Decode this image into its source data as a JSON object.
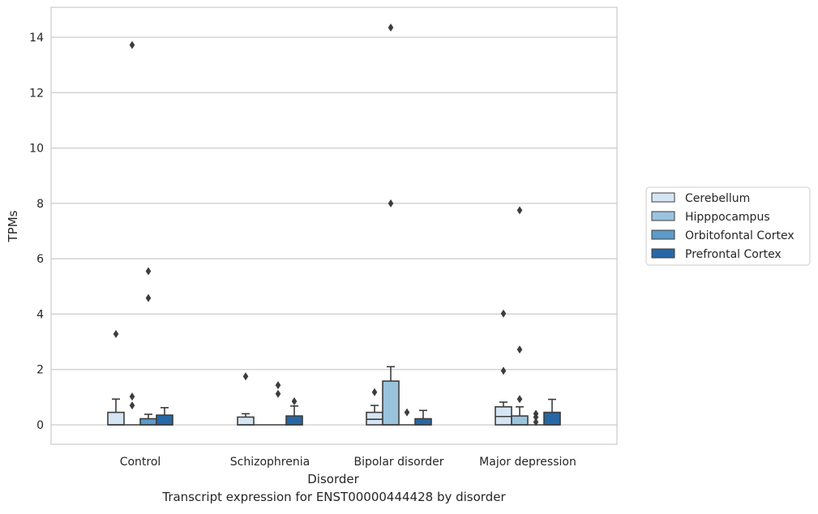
{
  "caption": "Transcript expression for ENST00000444428 by disorder",
  "chart_data": {
    "type": "box",
    "xlabel": "Disorder",
    "ylabel": "TPMs",
    "ylim": [
      -0.7,
      15.1
    ],
    "yticks": [
      0,
      2,
      4,
      6,
      8,
      10,
      12,
      14
    ],
    "grid": "horizontal",
    "legend_position": "right",
    "categories": [
      "Control",
      "Schizophrenia",
      "Bipolar disorder",
      "Major depression"
    ],
    "series": [
      {
        "name": "Cerebellum",
        "color": "#d6e5f3",
        "boxes": [
          {
            "q1": 0,
            "median": 0,
            "q3": 0.45,
            "whisker_low": 0,
            "whisker_high": 0.93,
            "outliers": [
              3.28
            ]
          },
          {
            "q1": 0,
            "median": 0,
            "q3": 0.28,
            "whisker_low": 0,
            "whisker_high": 0.4,
            "outliers": [
              1.75
            ]
          },
          {
            "q1": 0,
            "median": 0.2,
            "q3": 0.45,
            "whisker_low": 0,
            "whisker_high": 0.7,
            "outliers": [
              1.18
            ]
          },
          {
            "q1": 0,
            "median": 0.3,
            "q3": 0.65,
            "whisker_low": 0,
            "whisker_high": 0.82,
            "outliers": [
              4.02,
              1.95
            ]
          }
        ]
      },
      {
        "name": "Hipppocampus",
        "color": "#9ac4de",
        "boxes": [
          {
            "q1": 0,
            "median": 0,
            "q3": 0,
            "whisker_low": 0,
            "whisker_high": 0,
            "outliers": [
              13.72,
              1.02,
              0.7
            ]
          },
          {
            "q1": 0,
            "median": 0,
            "q3": 0,
            "whisker_low": 0,
            "whisker_high": 0,
            "outliers": []
          },
          {
            "q1": 0,
            "median": 0,
            "q3": 1.58,
            "whisker_low": 0,
            "whisker_high": 2.1,
            "outliers": [
              14.35,
              8.0
            ]
          },
          {
            "q1": 0,
            "median": 0,
            "q3": 0.32,
            "whisker_low": 0,
            "whisker_high": 0.65,
            "outliers": [
              7.75,
              2.72,
              0.93
            ]
          }
        ]
      },
      {
        "name": "Orbitofontal Cortex",
        "color": "#5b9bc9",
        "boxes": [
          {
            "q1": 0,
            "median": 0,
            "q3": 0.22,
            "whisker_low": 0,
            "whisker_high": 0.38,
            "outliers": [
              5.55,
              4.58
            ]
          },
          {
            "q1": 0,
            "median": 0,
            "q3": 0,
            "whisker_low": 0,
            "whisker_high": 0,
            "outliers": [
              1.43,
              1.12
            ]
          },
          {
            "q1": 0,
            "median": 0,
            "q3": 0,
            "whisker_low": 0,
            "whisker_high": 0,
            "outliers": [
              0.45
            ]
          },
          {
            "q1": 0,
            "median": 0,
            "q3": 0,
            "whisker_low": 0,
            "whisker_high": 0,
            "outliers": [
              0.4,
              0.28,
              0.1
            ]
          }
        ]
      },
      {
        "name": "Prefrontal Cortex",
        "color": "#2767a5",
        "boxes": [
          {
            "q1": 0,
            "median": 0,
            "q3": 0.35,
            "whisker_low": 0,
            "whisker_high": 0.62,
            "outliers": []
          },
          {
            "q1": 0,
            "median": 0,
            "q3": 0.32,
            "whisker_low": 0,
            "whisker_high": 0.68,
            "outliers": [
              0.85
            ]
          },
          {
            "q1": 0,
            "median": 0,
            "q3": 0.22,
            "whisker_low": 0,
            "whisker_high": 0.52,
            "outliers": []
          },
          {
            "q1": 0,
            "median": 0,
            "q3": 0.45,
            "whisker_low": 0,
            "whisker_high": 0.92,
            "outliers": []
          }
        ]
      }
    ]
  }
}
